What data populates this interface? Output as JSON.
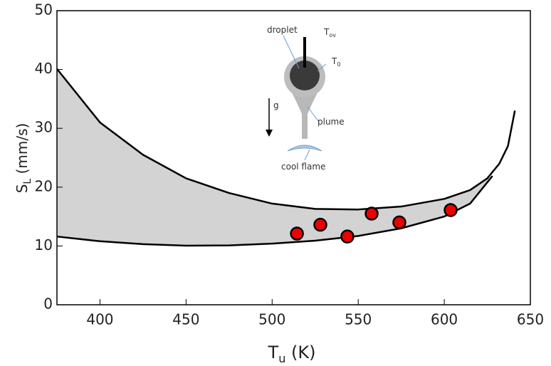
{
  "chart_data": {
    "type": "band_scatter",
    "x_label": {
      "main": "T",
      "sub": "u",
      "unit": "(K)"
    },
    "y_label": {
      "main": "S",
      "sub": "L",
      "unit": "(mm/s)"
    },
    "xlim": [
      375,
      650
    ],
    "ylim": [
      0,
      50
    ],
    "xticks": [
      400,
      450,
      500,
      550,
      600,
      650
    ],
    "yticks": [
      0,
      10,
      20,
      30,
      40,
      50
    ],
    "band_color": "#d3d3d3",
    "upper": {
      "color": "#000000",
      "x": [
        375,
        400,
        425,
        450,
        475,
        500,
        525,
        550,
        575,
        600,
        615,
        625,
        632,
        637,
        641
      ],
      "values": [
        40.1,
        31,
        25.5,
        21.5,
        19,
        17.2,
        16.3,
        16.2,
        16.7,
        18,
        19.5,
        21.5,
        24,
        27,
        33
      ]
    },
    "lower": {
      "color": "#000000",
      "x": [
        375,
        400,
        425,
        450,
        475,
        500,
        525,
        550,
        575,
        600,
        615,
        628
      ],
      "values": [
        11.6,
        10.8,
        10.3,
        10.05,
        10.1,
        10.4,
        10.9,
        11.7,
        13.0,
        15.0,
        17.2,
        21.9
      ]
    },
    "points": {
      "color": "#ee0000",
      "x": [
        514.4,
        528,
        543.7,
        557.8,
        573.9,
        603.7
      ],
      "values": [
        12.1,
        13.6,
        11.6,
        15.5,
        14.0,
        16.1
      ]
    },
    "inset": {
      "droplet": "droplet",
      "tov": {
        "main": "T",
        "sub": "ov"
      },
      "t0": {
        "main": "T",
        "sub": "0"
      },
      "g": "g",
      "plume": "plume",
      "flame": "cool flame"
    }
  }
}
